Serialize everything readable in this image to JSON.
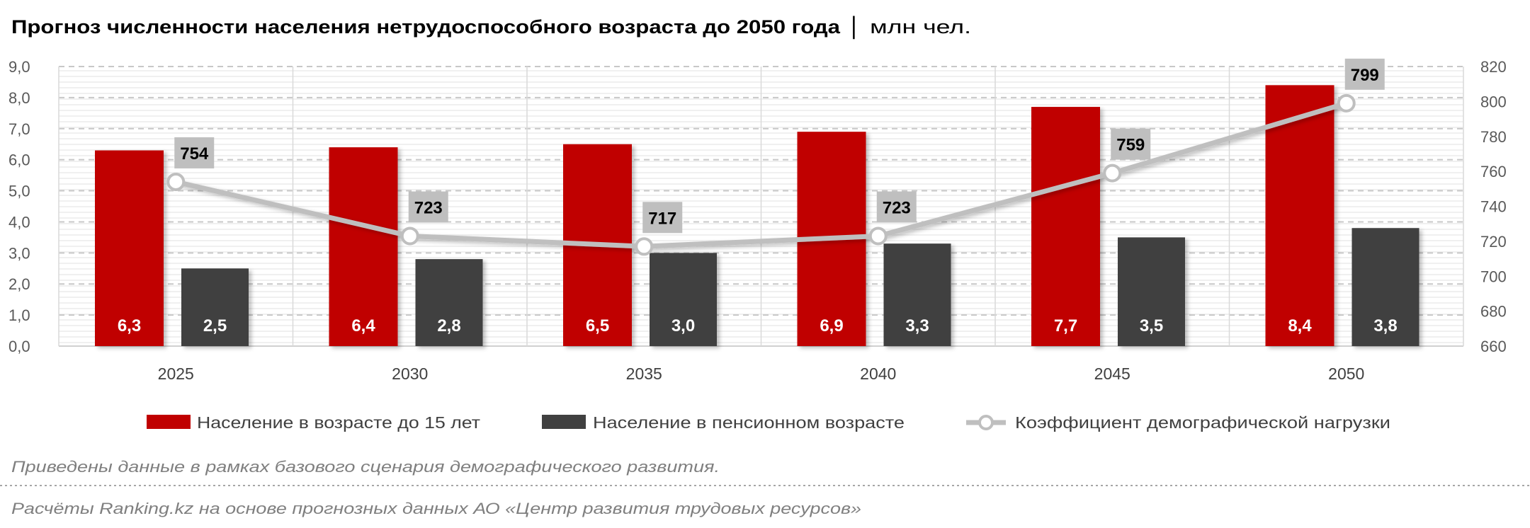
{
  "title": "Прогноз численности населения нетрудоспособного возраста до 2050 года",
  "title_unit": "│ млн чел.",
  "note": "Приведены данные в рамках базового сценария демографического развития.",
  "source": "Расчёты Ranking.kz на основе прогнозных данных АО «Центр развития трудовых ресурсов»",
  "colors": {
    "red": "#c00000",
    "dark": "#404040",
    "line": "#bfbfbf",
    "label_box": "#bfbfbf"
  },
  "chart_data": {
    "type": "bar",
    "title": "Прогноз численности населения нетрудоспособного возраста до 2050 года",
    "categories": [
      "2025",
      "2030",
      "2035",
      "2040",
      "2045",
      "2050"
    ],
    "series": [
      {
        "name": "Население в возрасте до 15 лет",
        "type": "bar",
        "axis": "left",
        "values": [
          6.3,
          6.4,
          6.5,
          6.9,
          7.7,
          8.4
        ],
        "labels": [
          "6,3",
          "6,4",
          "6,5",
          "6,9",
          "7,7",
          "8,4"
        ]
      },
      {
        "name": "Население в пенсионном возрасте",
        "type": "bar",
        "axis": "left",
        "values": [
          2.5,
          2.8,
          3.0,
          3.3,
          3.5,
          3.8
        ],
        "labels": [
          "2,5",
          "2,8",
          "3,0",
          "3,3",
          "3,5",
          "3,8"
        ]
      },
      {
        "name": "Коэффициент демографической нагрузки",
        "type": "line",
        "axis": "right",
        "values": [
          754,
          723,
          717,
          723,
          759,
          799
        ],
        "labels": [
          "754",
          "723",
          "717",
          "723",
          "759",
          "799"
        ]
      }
    ],
    "y_left": {
      "lim": [
        0,
        9
      ],
      "ticks": [
        "0,0",
        "1,0",
        "2,0",
        "3,0",
        "4,0",
        "5,0",
        "6,0",
        "7,0",
        "8,0",
        "9,0"
      ]
    },
    "y_right": {
      "lim": [
        660,
        820
      ],
      "ticks": [
        "660",
        "680",
        "700",
        "720",
        "740",
        "760",
        "780",
        "800",
        "820"
      ]
    },
    "grid": true,
    "legend": "bottom"
  }
}
